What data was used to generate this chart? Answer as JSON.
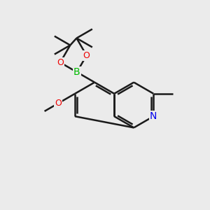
{
  "bg_color": "#ebebeb",
  "bond_color": "#1a1a1a",
  "bond_width": 1.8,
  "N_color": "#0000ee",
  "O_color": "#ee0000",
  "B_color": "#00bb00",
  "C_color": "#1a1a1a",
  "font_size": 10,
  "fig_size": [
    3.0,
    3.0
  ],
  "dpi": 100,
  "xlim": [
    0,
    10
  ],
  "ylim": [
    0,
    10
  ]
}
